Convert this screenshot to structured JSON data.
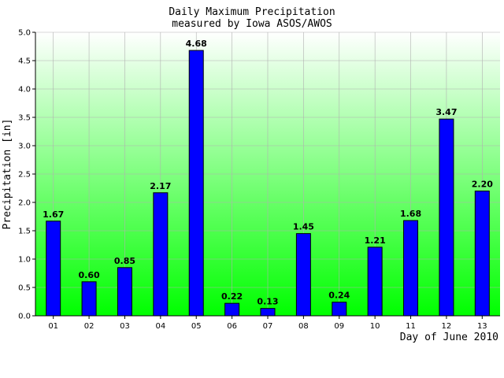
{
  "chart_data": {
    "type": "bar",
    "title": "Daily Maximum Precipitation",
    "subtitle": "measured by Iowa ASOS/AWOS",
    "xlabel": "Day of June 2010",
    "ylabel": "Precipitation [in]",
    "categories": [
      "01",
      "02",
      "03",
      "04",
      "05",
      "06",
      "07",
      "08",
      "09",
      "10",
      "11",
      "12",
      "13"
    ],
    "values": [
      1.67,
      0.6,
      0.85,
      2.17,
      4.68,
      0.22,
      0.13,
      1.45,
      0.24,
      1.21,
      1.68,
      3.47,
      2.2
    ],
    "value_labels": [
      "1.67",
      "0.60",
      "0.85",
      "2.17",
      "4.68",
      "0.22",
      "0.13",
      "1.45",
      "0.24",
      "1.21",
      "1.68",
      "3.47",
      "2.20"
    ],
    "ylim": [
      0,
      5.0
    ],
    "yticks": [
      "0.0",
      "0.5",
      "1.0",
      "1.5",
      "2.0",
      "2.5",
      "3.0",
      "3.5",
      "4.0",
      "4.5",
      "5.0"
    ],
    "grid": true,
    "legend": "none",
    "colors": {
      "bar_fill": "#0000ff",
      "bar_stroke": "#000000",
      "background_top": "#ffffff",
      "background_bottom": "#00ff00",
      "grid": "#b0b0b0"
    }
  }
}
